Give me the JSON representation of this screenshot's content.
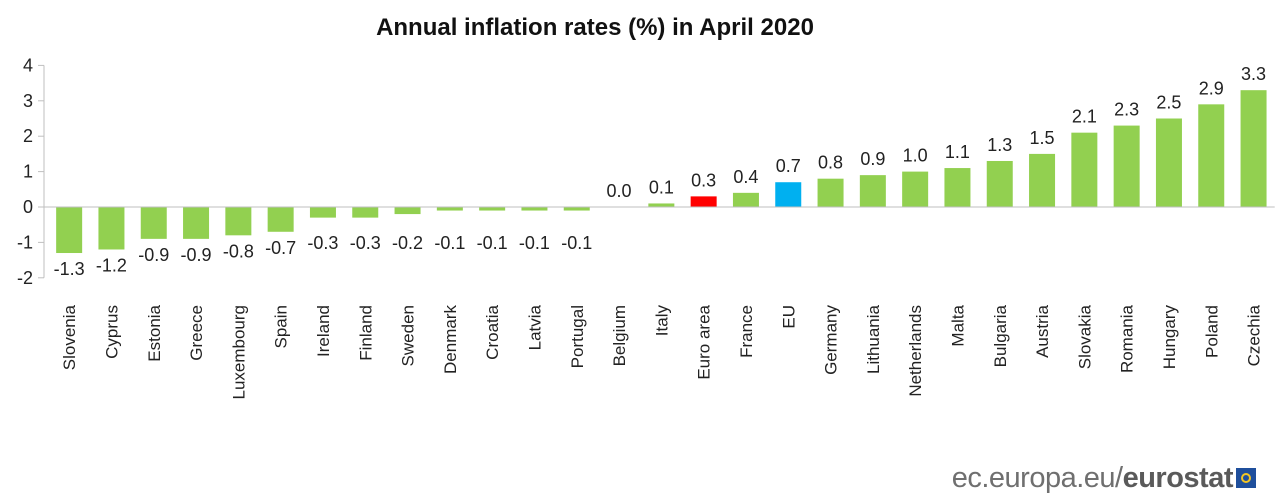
{
  "chart_data": {
    "type": "bar",
    "title": "Annual inflation rates (%) in April 2020",
    "xlabel": "",
    "ylabel": "",
    "ylim": [
      -2,
      4
    ],
    "yticks": [
      4,
      3,
      2,
      1,
      0,
      -1,
      -2
    ],
    "grid": false,
    "legend": "none",
    "categories": [
      "Slovenia",
      "Cyprus",
      "Estonia",
      "Greece",
      "Luxembourg",
      "Spain",
      "Ireland",
      "Finland",
      "Sweden",
      "Denmark",
      "Croatia",
      "Latvia",
      "Portugal",
      "Belgium",
      "Italy",
      "Euro area",
      "France",
      "EU",
      "Germany",
      "Lithuania",
      "Netherlands",
      "Malta",
      "Bulgaria",
      "Austria",
      "Slovakia",
      "Romania",
      "Hungary",
      "Poland",
      "Czechia"
    ],
    "values": [
      -1.3,
      -1.2,
      -0.9,
      -0.9,
      -0.8,
      -0.7,
      -0.3,
      -0.3,
      -0.2,
      -0.1,
      -0.1,
      -0.1,
      -0.1,
      0.0,
      0.1,
      0.3,
      0.4,
      0.7,
      0.8,
      0.9,
      1.0,
      1.1,
      1.3,
      1.5,
      2.1,
      2.3,
      2.5,
      2.9,
      3.3
    ],
    "data_labels": [
      "-1.3",
      "-1.2",
      "-0.9",
      "-0.9",
      "-0.8",
      "-0.7",
      "-0.3",
      "-0.3",
      "-0.2",
      "-0.1",
      "-0.1",
      "-0.1",
      "-0.1",
      "0.0",
      "0.1",
      "0.3",
      "0.4",
      "0.7",
      "0.8",
      "0.9",
      "1.0",
      "1.1",
      "1.3",
      "1.5",
      "2.1",
      "2.3",
      "2.5",
      "2.9",
      "3.3"
    ],
    "colors": {
      "default": "#92d050",
      "Euro area": "#ff0000",
      "EU": "#00b0f0"
    }
  },
  "source": {
    "domain": "ec.europa.eu/",
    "name": "eurostat"
  }
}
